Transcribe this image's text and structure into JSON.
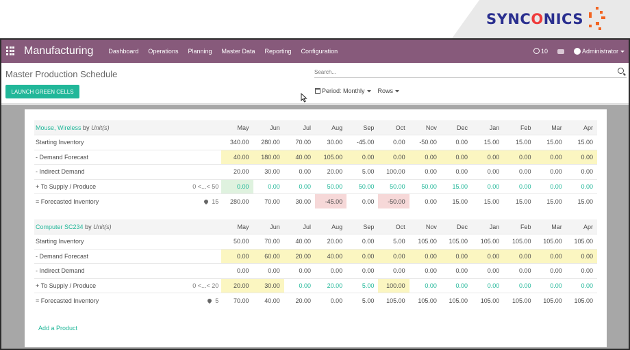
{
  "logo": {
    "text_a": "SYNC",
    "text_o": "O",
    "text_b": "NICS"
  },
  "topbar": {
    "app_title": "Manufacturing",
    "menu": [
      "Dashboard",
      "Operations",
      "Planning",
      "Master Data",
      "Reporting",
      "Configuration"
    ],
    "activity_count": "10",
    "user": "Administrator",
    "bg_color": "#875a7b"
  },
  "control_panel": {
    "breadcrumb": "Master Production Schedule",
    "launch_button": "LAUNCH GREEN CELLS",
    "search_placeholder": "Search...",
    "period_filter": "Period: Monthly",
    "rows_filter": "Rows"
  },
  "months": [
    "May",
    "Jun",
    "Jul",
    "Aug",
    "Sep",
    "Oct",
    "Nov",
    "Dec",
    "Jan",
    "Feb",
    "Mar",
    "Apr"
  ],
  "products": [
    {
      "name": "Mouse, Wireless",
      "by": "by",
      "unit": "Unit(s)",
      "rows": [
        {
          "label": "Starting Inventory",
          "extra": "",
          "values": [
            "340.00",
            "280.00",
            "70.00",
            "30.00",
            "-45.00",
            "0.00",
            "-50.00",
            "0.00",
            "15.00",
            "15.00",
            "15.00",
            "15.00"
          ],
          "style": [
            "",
            "",
            "",
            "",
            "",
            "",
            "",
            "",
            "",
            "",
            "",
            ""
          ]
        },
        {
          "label": "-  Demand Forecast",
          "extra": "",
          "values": [
            "40.00",
            "180.00",
            "40.00",
            "105.00",
            "0.00",
            "0.00",
            "0.00",
            "0.00",
            "0.00",
            "0.00",
            "0.00",
            "0.00"
          ],
          "style": [
            "y",
            "y",
            "y",
            "y",
            "y",
            "y",
            "y",
            "y",
            "y",
            "y",
            "y",
            "y"
          ]
        },
        {
          "label": "-  Indirect Demand",
          "extra": "",
          "values": [
            "20.00",
            "30.00",
            "0.00",
            "20.00",
            "5.00",
            "100.00",
            "0.00",
            "0.00",
            "0.00",
            "0.00",
            "0.00",
            "0.00"
          ],
          "style": [
            "",
            "",
            "",
            "",
            "",
            "",
            "",
            "",
            "",
            "",
            "",
            ""
          ]
        },
        {
          "label": "+  To Supply / Produce",
          "extra": "0 <...< 50",
          "values": [
            "0.00",
            "0.00",
            "0.00",
            "50.00",
            "50.00",
            "50.00",
            "50.00",
            "15.00",
            "0.00",
            "0.00",
            "0.00",
            "0.00"
          ],
          "style": [
            "g",
            "t",
            "t",
            "t",
            "t",
            "t",
            "t",
            "t",
            "t",
            "t",
            "t",
            "t"
          ]
        },
        {
          "label": "=  Forecasted Inventory",
          "extra": "15",
          "pin": true,
          "values": [
            "280.00",
            "70.00",
            "30.00",
            "-45.00",
            "0.00",
            "-50.00",
            "0.00",
            "15.00",
            "15.00",
            "15.00",
            "15.00",
            "15.00"
          ],
          "style": [
            "",
            "",
            "",
            "r",
            "",
            "r",
            "",
            "",
            "",
            "",
            "",
            ""
          ]
        }
      ]
    },
    {
      "name": "Computer SC234",
      "by": "by",
      "unit": "Unit(s)",
      "rows": [
        {
          "label": "Starting Inventory",
          "extra": "",
          "values": [
            "50.00",
            "70.00",
            "40.00",
            "20.00",
            "0.00",
            "5.00",
            "105.00",
            "105.00",
            "105.00",
            "105.00",
            "105.00",
            "105.00"
          ],
          "style": [
            "",
            "",
            "",
            "",
            "",
            "",
            "",
            "",
            "",
            "",
            "",
            ""
          ]
        },
        {
          "label": "-  Demand Forecast",
          "extra": "",
          "values": [
            "0.00",
            "60.00",
            "20.00",
            "40.00",
            "0.00",
            "0.00",
            "0.00",
            "0.00",
            "0.00",
            "0.00",
            "0.00",
            "0.00"
          ],
          "style": [
            "y",
            "y",
            "y",
            "y",
            "y",
            "y",
            "y",
            "y",
            "y",
            "y",
            "y",
            "y"
          ]
        },
        {
          "label": "-  Indirect Demand",
          "extra": "",
          "values": [
            "0.00",
            "0.00",
            "0.00",
            "0.00",
            "0.00",
            "0.00",
            "0.00",
            "0.00",
            "0.00",
            "0.00",
            "0.00",
            "0.00"
          ],
          "style": [
            "",
            "",
            "",
            "",
            "",
            "",
            "",
            "",
            "",
            "",
            "",
            ""
          ]
        },
        {
          "label": "+  To Supply / Produce",
          "extra": "0 <...< 20",
          "values": [
            "20.00",
            "30.00",
            "0.00",
            "20.00",
            "5.00",
            "100.00",
            "0.00",
            "0.00",
            "0.00",
            "0.00",
            "0.00",
            "0.00"
          ],
          "style": [
            "y",
            "y",
            "t",
            "t",
            "t",
            "y",
            "t",
            "t",
            "t",
            "t",
            "t",
            "t"
          ]
        },
        {
          "label": "=  Forecasted Inventory",
          "extra": "5",
          "pin": true,
          "values": [
            "70.00",
            "40.00",
            "20.00",
            "0.00",
            "5.00",
            "105.00",
            "105.00",
            "105.00",
            "105.00",
            "105.00",
            "105.00",
            "105.00"
          ],
          "style": [
            "",
            "",
            "",
            "",
            "",
            "",
            "",
            "",
            "",
            "",
            "",
            ""
          ]
        }
      ]
    }
  ],
  "add_product": "Add a Product"
}
